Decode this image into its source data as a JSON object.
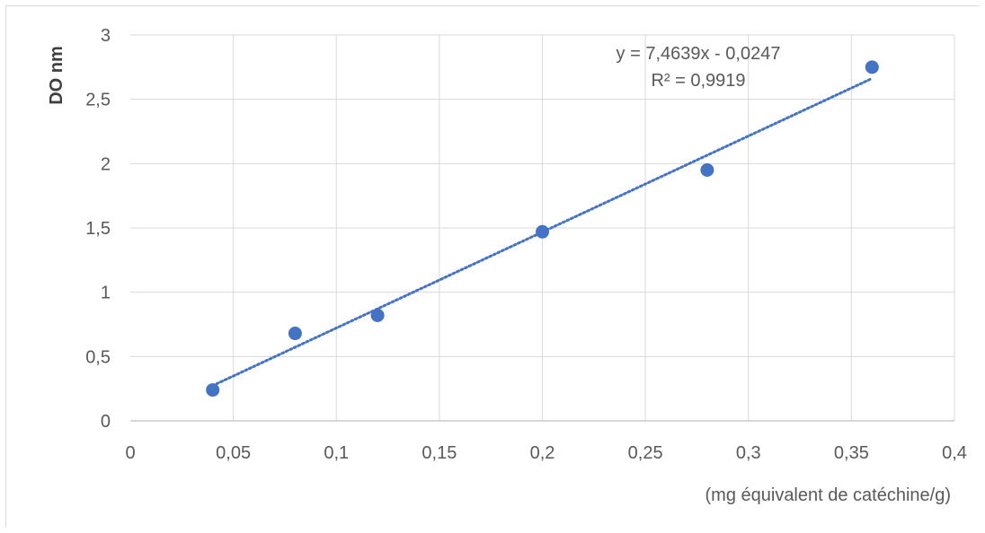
{
  "chart_data": {
    "type": "scatter",
    "title": "",
    "xlabel": "(mg équivalent de catéchine/g)",
    "ylabel": "DO nm",
    "xlim": [
      0,
      0.4
    ],
    "ylim": [
      0,
      3
    ],
    "x_ticks": [
      "0",
      "0,05",
      "0,1",
      "0,15",
      "0,2",
      "0,25",
      "0,3",
      "0,35",
      "0,4"
    ],
    "y_ticks": [
      "0",
      "0,5",
      "1",
      "1,5",
      "2",
      "2,5",
      "3"
    ],
    "grid": true,
    "series": [
      {
        "x": [
          0.04,
          0.08,
          0.12,
          0.2,
          0.28,
          0.36
        ],
        "y": [
          0.24,
          0.68,
          0.82,
          1.47,
          1.95,
          2.75
        ],
        "color": "#4472c4"
      }
    ],
    "trendline": {
      "slope": 7.4639,
      "intercept": -0.0247,
      "x_range": [
        0.04,
        0.36
      ],
      "style": "dotted",
      "color": "#4472c4",
      "equation": "y = 7,4639x - 0,0247",
      "r2": "R² = 0,9919"
    }
  }
}
